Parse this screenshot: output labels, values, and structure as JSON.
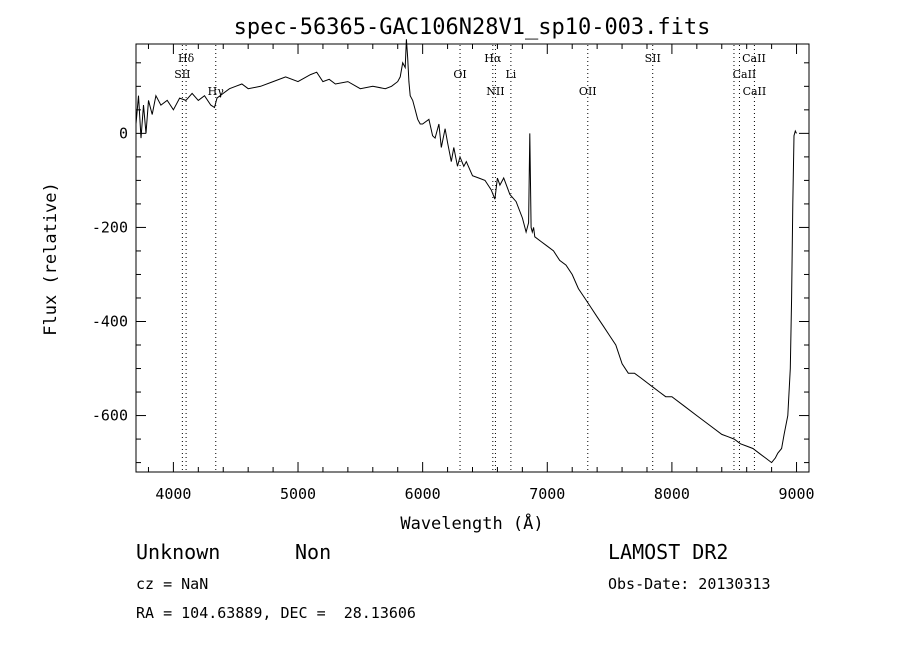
{
  "chart_data": {
    "type": "line",
    "title": "spec-56365-GAC106N28V1_sp10-003.fits",
    "xlabel": "Wavelength (Å)",
    "ylabel": "Flux (relative)",
    "xlim": [
      3700,
      9100
    ],
    "ylim": [
      -720,
      190
    ],
    "xticks": [
      4000,
      5000,
      6000,
      7000,
      8000,
      9000
    ],
    "yticks": [
      0,
      -200,
      -400,
      -600
    ],
    "grid": false,
    "series": [
      {
        "x": [
          3700,
          3720,
          3740,
          3760,
          3780,
          3800,
          3830,
          3860,
          3900,
          3950,
          4000,
          4050,
          4100,
          4150,
          4200,
          4250,
          4300,
          4330,
          4350,
          4400,
          4450,
          4500,
          4550,
          4600,
          4700,
          4800,
          4900,
          5000,
          5100,
          5150,
          5200,
          5250,
          5300,
          5400,
          5500,
          5600,
          5700,
          5750,
          5800,
          5820,
          5840,
          5860,
          5870,
          5880,
          5890,
          5900,
          5920,
          5940,
          5960,
          5980,
          6000,
          6050,
          6080,
          6100,
          6130,
          6150,
          6180,
          6200,
          6230,
          6250,
          6280,
          6300,
          6330,
          6350,
          6400,
          6450,
          6500,
          6550,
          6580,
          6600,
          6620,
          6650,
          6700,
          6750,
          6800,
          6830,
          6850,
          6860,
          6870,
          6880,
          6890,
          6900,
          6950,
          7000,
          7050,
          7100,
          7150,
          7200,
          7250,
          7300,
          7350,
          7400,
          7450,
          7500,
          7550,
          7600,
          7650,
          7700,
          7750,
          7800,
          7850,
          7900,
          7950,
          8000,
          8100,
          8200,
          8300,
          8400,
          8450,
          8500,
          8550,
          8600,
          8650,
          8700,
          8750,
          8800,
          8830,
          8850,
          8880,
          8900,
          8930,
          8950,
          8960,
          8970,
          8980,
          8990,
          9000
        ],
        "y": [
          20,
          80,
          -10,
          60,
          0,
          70,
          40,
          80,
          60,
          70,
          50,
          75,
          70,
          85,
          70,
          80,
          60,
          55,
          75,
          85,
          95,
          100,
          105,
          95,
          100,
          110,
          120,
          110,
          125,
          130,
          110,
          115,
          105,
          110,
          95,
          100,
          95,
          100,
          110,
          120,
          150,
          140,
          200,
          160,
          110,
          80,
          70,
          50,
          30,
          20,
          20,
          30,
          -5,
          -10,
          20,
          -30,
          10,
          -20,
          -60,
          -30,
          -70,
          -50,
          -70,
          -60,
          -90,
          -95,
          -100,
          -120,
          -140,
          -95,
          -110,
          -95,
          -130,
          -145,
          -180,
          -210,
          -190,
          0,
          -200,
          -210,
          -200,
          -220,
          -230,
          -240,
          -250,
          -270,
          -280,
          -300,
          -330,
          -350,
          -370,
          -390,
          -410,
          -430,
          -450,
          -490,
          -510,
          -510,
          -520,
          -530,
          -540,
          -550,
          -560,
          -560,
          -580,
          -600,
          -620,
          -640,
          -645,
          -650,
          -660,
          -665,
          -670,
          -680,
          -690,
          -700,
          -690,
          -680,
          -670,
          -640,
          -600,
          -500,
          -350,
          -150,
          -5,
          5,
          0
        ]
      }
    ],
    "lines": [
      {
        "label": "Hδ",
        "x": 4102
      },
      {
        "label": "SII",
        "x": 4072
      },
      {
        "label": "Hγ",
        "x": 4340
      },
      {
        "label": "OI",
        "x": 6300
      },
      {
        "label": "Hα",
        "x": 6563
      },
      {
        "label": "NII",
        "x": 6584
      },
      {
        "label": "Li",
        "x": 6708
      },
      {
        "label": "OII",
        "x": 7325
      },
      {
        "label": "SII",
        "x": 7846
      },
      {
        "label": "CaII",
        "x": 8498
      },
      {
        "label": "CaII",
        "x": 8542
      },
      {
        "label": "CaII",
        "x": 8662
      }
    ]
  },
  "info": {
    "class_name": "Unknown",
    "subclass": "Non",
    "survey": "LAMOST DR2",
    "cz": "cz = NaN",
    "obs_date": "Obs-Date: 20130313",
    "coords": "RA = 104.63889, DEC =  28.13606"
  }
}
